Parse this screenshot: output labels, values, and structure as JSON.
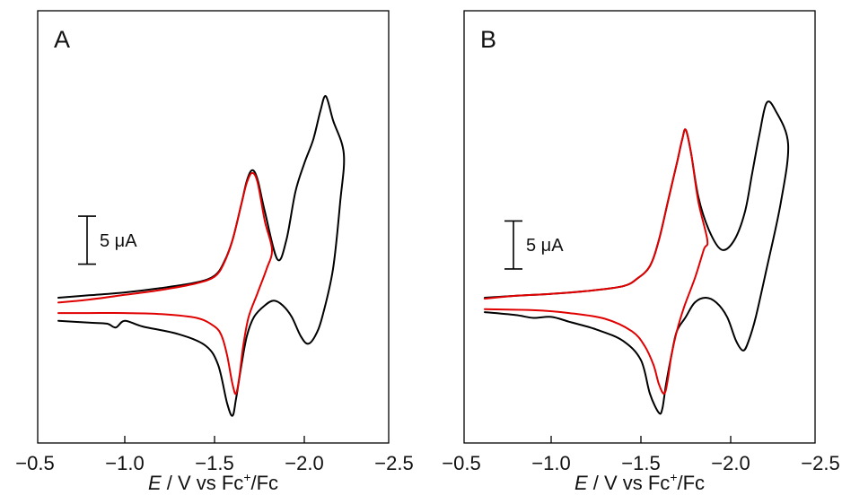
{
  "chart_data": [
    {
      "type": "line",
      "panel_label": "A",
      "xlabel_italic": "E",
      "xlabel_rest": " / V vs Fc",
      "xlabel_sup": "+",
      "xlabel_tail": "/Fc",
      "xlim": [
        -0.5,
        -2.5
      ],
      "xticks": [
        -0.5,
        -1.0,
        -1.5,
        -2.0,
        -2.5
      ],
      "xtick_labels": [
        "−0.5",
        "−1.0",
        "−1.5",
        "−2.0",
        "−2.5"
      ],
      "yticks": false,
      "ylim": [
        -15,
        20
      ],
      "scale_bar": {
        "label": "5 μA",
        "value": 5,
        "anchor_y": 8.5
      },
      "series": [
        {
          "color": "#000000",
          "x": [
            -0.63,
            -0.8,
            -1.0,
            -1.2,
            -1.4,
            -1.5,
            -1.55,
            -1.6,
            -1.65,
            -1.68,
            -1.71,
            -1.74,
            -1.78,
            -1.85,
            -1.9,
            -1.95,
            -2.0,
            -2.05,
            -2.09,
            -2.12,
            -2.16,
            -2.22,
            -2.2,
            -2.16,
            -2.1,
            -2.06,
            -2.02,
            -1.98,
            -1.93,
            -1.88,
            -1.83,
            -1.78,
            -1.72,
            -1.68,
            -1.65,
            -1.62,
            -1.6,
            -1.57,
            -1.52,
            -1.45,
            -1.3,
            -1.1,
            -1.0,
            -0.95,
            -0.9,
            -0.8,
            -0.63
          ],
          "y": [
            0.0,
            0.25,
            0.55,
            1.0,
            1.6,
            2.3,
            3.6,
            6.0,
            9.8,
            12.2,
            13.3,
            12.3,
            9.0,
            4.0,
            6.0,
            11.0,
            14.0,
            16.5,
            19.5,
            21.0,
            18.5,
            15.0,
            10.0,
            3.0,
            -2.0,
            -4.0,
            -4.8,
            -4.0,
            -2.0,
            -0.8,
            -0.3,
            -0.8,
            -2.0,
            -4.0,
            -7.0,
            -10.5,
            -12.3,
            -11.0,
            -7.0,
            -5.0,
            -3.8,
            -3.0,
            -2.4,
            -3.1,
            -2.7,
            -2.6,
            -2.4
          ]
        },
        {
          "color": "#e00000",
          "x": [
            -0.63,
            -0.8,
            -1.0,
            -1.2,
            -1.4,
            -1.5,
            -1.55,
            -1.6,
            -1.65,
            -1.68,
            -1.71,
            -1.74,
            -1.78,
            -1.82,
            -1.79,
            -1.74,
            -1.69,
            -1.66,
            -1.64,
            -1.62,
            -1.6,
            -1.57,
            -1.54,
            -1.5,
            -1.4,
            -1.2,
            -1.0,
            -0.8,
            -0.63
          ],
          "y": [
            -0.5,
            -0.2,
            0.3,
            0.8,
            1.5,
            2.2,
            3.5,
            6.0,
            9.8,
            12.0,
            13.0,
            12.0,
            8.0,
            5.0,
            3.0,
            0.5,
            -2.0,
            -5.0,
            -8.0,
            -10.0,
            -9.0,
            -6.0,
            -4.0,
            -3.0,
            -2.1,
            -1.7,
            -1.6,
            -1.6,
            -1.6
          ]
        }
      ]
    },
    {
      "type": "line",
      "panel_label": "B",
      "xlabel_italic": "E",
      "xlabel_rest": " / V vs Fc",
      "xlabel_sup": "+",
      "xlabel_tail": "/Fc",
      "xlim": [
        -0.5,
        -2.5
      ],
      "xticks": [
        -0.5,
        -1.0,
        -1.5,
        -2.0,
        -2.5
      ],
      "xtick_labels": [
        "−0.5",
        "−1.0",
        "−1.5",
        "−2.0",
        "−2.5"
      ],
      "yticks": false,
      "ylim": [
        -15,
        20
      ],
      "scale_bar": {
        "label": "5 μA",
        "value": 5,
        "anchor_y": 8.0
      },
      "series": [
        {
          "color": "#000000",
          "x": [
            -0.63,
            -0.8,
            -1.0,
            -1.2,
            -1.4,
            -1.48,
            -1.55,
            -1.6,
            -1.65,
            -1.7,
            -1.73,
            -1.75,
            -1.78,
            -1.82,
            -1.88,
            -1.95,
            -2.02,
            -2.08,
            -2.12,
            -2.16,
            -2.2,
            -2.25,
            -2.32,
            -2.28,
            -2.2,
            -2.14,
            -2.1,
            -2.07,
            -2.03,
            -1.98,
            -1.92,
            -1.86,
            -1.8,
            -1.75,
            -1.7,
            -1.67,
            -1.64,
            -1.62,
            -1.6,
            -1.55,
            -1.5,
            -1.4,
            -1.25,
            -1.1,
            -1.0,
            -0.9,
            -0.8,
            -0.63
          ],
          "y": [
            0.0,
            0.2,
            0.4,
            0.7,
            1.2,
            2.0,
            3.3,
            6.0,
            10.0,
            14.0,
            16.5,
            17.5,
            15.0,
            10.5,
            7.0,
            5.0,
            6.0,
            9.0,
            13.0,
            17.0,
            20.3,
            19.5,
            16.0,
            10.0,
            3.0,
            -2.0,
            -4.5,
            -5.5,
            -4.5,
            -2.0,
            -0.5,
            0.0,
            -0.5,
            -2.0,
            -3.5,
            -6.0,
            -9.0,
            -11.5,
            -12.0,
            -10.0,
            -6.5,
            -4.5,
            -3.3,
            -2.5,
            -2.0,
            -2.1,
            -1.8,
            -1.5
          ]
        },
        {
          "color": "#e00000",
          "x": [
            -0.63,
            -0.8,
            -1.0,
            -1.2,
            -1.4,
            -1.48,
            -1.55,
            -1.6,
            -1.65,
            -1.7,
            -1.73,
            -1.75,
            -1.78,
            -1.82,
            -1.87,
            -1.85,
            -1.8,
            -1.74,
            -1.7,
            -1.67,
            -1.65,
            -1.63,
            -1.6,
            -1.57,
            -1.52,
            -1.45,
            -1.3,
            -1.1,
            -0.9,
            -0.63
          ],
          "y": [
            -0.1,
            0.2,
            0.4,
            0.7,
            1.2,
            2.0,
            3.3,
            6.0,
            10.0,
            14.0,
            16.5,
            17.5,
            15.0,
            10.0,
            6.0,
            5.0,
            2.0,
            -1.0,
            -3.5,
            -6.0,
            -8.5,
            -10.0,
            -9.0,
            -7.0,
            -5.0,
            -3.5,
            -2.2,
            -1.6,
            -1.3,
            -1.2
          ]
        }
      ]
    }
  ]
}
